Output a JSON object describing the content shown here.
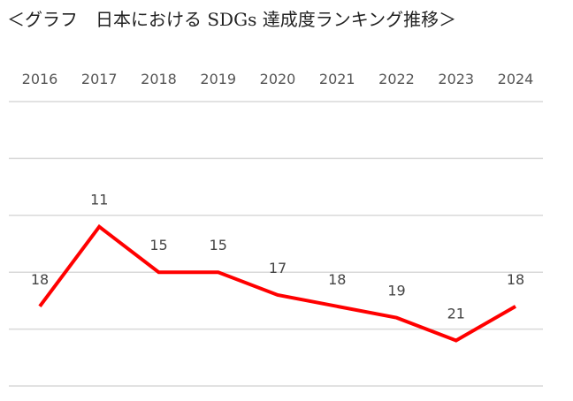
{
  "title": "＜グラフ　日本における SDGs 達成度ランキング推移＞",
  "chart_data": {
    "type": "line",
    "x": [
      "2016",
      "2017",
      "2018",
      "2019",
      "2020",
      "2021",
      "2022",
      "2023",
      "2024"
    ],
    "series": [
      {
        "values": [
          18,
          11,
          15,
          15,
          17,
          18,
          19,
          21,
          18
        ],
        "color": "#ff0000"
      }
    ],
    "y_axis_reversed": true,
    "ylim": [
      0,
      25
    ],
    "x_axis_position": "top",
    "grid": true,
    "grid_color": "#d9d9d9",
    "y_axis_labels_shown": false
  }
}
